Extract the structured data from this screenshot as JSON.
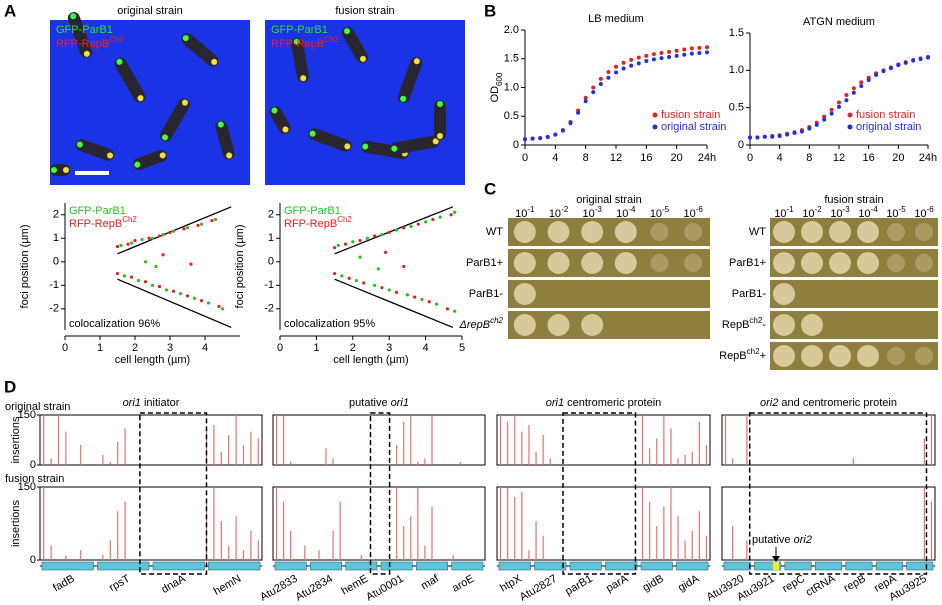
{
  "panel_labels": [
    "A",
    "B",
    "C",
    "D"
  ],
  "A": {
    "images": [
      {
        "title": "original strain"
      },
      {
        "title": "fusion strain"
      }
    ],
    "charts": [
      {
        "type": "scatter",
        "xlabel": "cell length (µm)",
        "ylabel": "foci position (µm)",
        "note": "colocalization 96%",
        "xlim": [
          0,
          5
        ],
        "xticks": [
          0,
          1,
          2,
          3,
          4
        ],
        "ylim": [
          -2.9,
          2.5
        ],
        "yticks": [
          -2,
          -1,
          0,
          1,
          2
        ],
        "series": [
          {
            "name": "GFP-ParB1",
            "color": "#22c322",
            "x": [
              1.6,
              1.9,
              2.2,
              2.5,
              2.8,
              3.1,
              3.5,
              3.9,
              4.3,
              1.7,
              2.1,
              2.5,
              2.9,
              3.3,
              3.7,
              4.1,
              4.5,
              2.3,
              2.6
            ],
            "y": [
              0.7,
              0.8,
              0.95,
              1.0,
              1.15,
              1.3,
              1.45,
              1.6,
              1.8,
              -0.6,
              -0.8,
              -1.0,
              -1.2,
              -1.35,
              -1.55,
              -1.75,
              -2.0,
              0.0,
              -0.2
            ]
          },
          {
            "name": [
              {
                "t": "RFP-RepB"
              },
              {
                "t": "Ch2",
                "sup": true
              }
            ],
            "color": "#e82020",
            "x": [
              1.5,
              1.8,
              2.0,
              2.4,
              2.7,
              3.0,
              3.4,
              3.8,
              4.2,
              1.5,
              1.9,
              2.3,
              2.7,
              3.1,
              3.5,
              3.9,
              4.4,
              2.8,
              3.6
            ],
            "y": [
              0.65,
              0.75,
              0.9,
              1.0,
              1.1,
              1.25,
              1.4,
              1.55,
              1.75,
              -0.5,
              -0.65,
              -0.85,
              -1.05,
              -1.25,
              -1.45,
              -1.65,
              -1.9,
              0.3,
              -0.1
            ]
          }
        ]
      },
      {
        "type": "scatter",
        "xlabel": "cell length (µm)",
        "ylabel": "foci position (µm)",
        "note": "colocalization 95%",
        "xlim": [
          0,
          5
        ],
        "xticks": [
          0,
          1,
          2,
          3,
          4,
          5
        ],
        "ylim": [
          -2.9,
          2.5
        ],
        "yticks": [
          -2,
          -1,
          0,
          1,
          2
        ],
        "series": [
          {
            "name": "GFP-ParB1",
            "color": "#22c322",
            "x": [
              1.6,
              2.0,
              2.4,
              2.8,
              3.2,
              3.6,
              4.0,
              4.4,
              4.8,
              1.7,
              2.1,
              2.6,
              3.0,
              3.5,
              3.9,
              4.3,
              4.8,
              2.2,
              2.7
            ],
            "y": [
              0.7,
              0.85,
              1.0,
              1.15,
              1.35,
              1.5,
              1.7,
              1.9,
              2.1,
              -0.6,
              -0.8,
              -1.0,
              -1.2,
              -1.4,
              -1.6,
              -1.8,
              -2.1,
              0.2,
              -0.3
            ]
          },
          {
            "name": [
              {
                "t": "RFP-RepB"
              },
              {
                "t": "Ch2",
                "sup": true
              }
            ],
            "color": "#e82020",
            "x": [
              1.5,
              1.8,
              2.2,
              2.6,
              3.0,
              3.4,
              3.8,
              4.2,
              4.7,
              1.5,
              1.9,
              2.3,
              2.8,
              3.2,
              3.7,
              4.1,
              4.6,
              2.9,
              3.4
            ],
            "y": [
              0.6,
              0.75,
              0.9,
              1.1,
              1.25,
              1.45,
              1.6,
              1.8,
              2.0,
              -0.5,
              -0.7,
              -0.9,
              -1.1,
              -1.3,
              -1.5,
              -1.7,
              -2.0,
              0.4,
              -0.2
            ]
          }
        ]
      }
    ]
  },
  "B": {
    "charts": [
      {
        "type": "line",
        "title": "LB medium",
        "ylabel": [
          {
            "t": "OD"
          },
          {
            "t": "600",
            "sub": true
          }
        ],
        "xlim": [
          0,
          24
        ],
        "xticks": [
          0,
          4,
          8,
          12,
          16,
          20,
          {
            "value": 24,
            "label": "24h"
          }
        ],
        "ylim": [
          0,
          2
        ],
        "yticks": [
          0,
          0.5,
          {
            "value": 1,
            "label": "1.0"
          },
          1.5,
          {
            "value": 2,
            "label": "2.0"
          }
        ],
        "x": [
          0,
          1,
          2,
          3,
          4,
          5,
          6,
          7,
          8,
          9,
          10,
          11,
          12,
          13,
          14,
          15,
          16,
          17,
          18,
          19,
          20,
          21,
          22,
          23,
          24
        ],
        "series": [
          {
            "name": "fusion strain",
            "color": "#e82020",
            "values": [
              0.1,
              0.11,
              0.12,
              0.14,
              0.18,
              0.26,
              0.4,
              0.6,
              0.82,
              1.0,
              1.15,
              1.27,
              1.36,
              1.43,
              1.48,
              1.52,
              1.55,
              1.58,
              1.6,
              1.62,
              1.64,
              1.66,
              1.68,
              1.69,
              1.7
            ]
          },
          {
            "name": "original strain",
            "color": "#2030e0",
            "values": [
              0.1,
              0.11,
              0.12,
              0.14,
              0.18,
              0.25,
              0.38,
              0.56,
              0.76,
              0.92,
              1.06,
              1.17,
              1.26,
              1.33,
              1.38,
              1.42,
              1.46,
              1.49,
              1.51,
              1.53,
              1.55,
              1.57,
              1.59,
              1.6,
              1.61
            ]
          }
        ]
      },
      {
        "type": "line",
        "title": "ATGN medium",
        "xlim": [
          0,
          24
        ],
        "xticks": [
          0,
          4,
          8,
          12,
          16,
          20,
          {
            "value": 24,
            "label": "24h"
          }
        ],
        "ylim": [
          0,
          1.5
        ],
        "yticks": [
          0,
          0.5,
          {
            "value": 1,
            "label": "1.0"
          },
          1.5
        ],
        "x": [
          0,
          1,
          2,
          3,
          4,
          5,
          6,
          7,
          8,
          9,
          10,
          11,
          12,
          13,
          14,
          15,
          16,
          17,
          18,
          19,
          20,
          21,
          22,
          23,
          24
        ],
        "series": [
          {
            "name": "fusion strain",
            "color": "#e82020",
            "values": [
              0.1,
              0.1,
              0.11,
              0.12,
              0.13,
              0.15,
              0.17,
              0.2,
              0.24,
              0.3,
              0.38,
              0.47,
              0.57,
              0.67,
              0.76,
              0.84,
              0.9,
              0.96,
              1.0,
              1.04,
              1.08,
              1.11,
              1.14,
              1.16,
              1.18
            ]
          },
          {
            "name": "original strain",
            "color": "#2030e0",
            "values": [
              0.1,
              0.1,
              0.11,
              0.11,
              0.12,
              0.14,
              0.16,
              0.18,
              0.22,
              0.27,
              0.34,
              0.42,
              0.51,
              0.6,
              0.7,
              0.79,
              0.87,
              0.94,
              0.99,
              1.03,
              1.07,
              1.1,
              1.13,
              1.15,
              1.17
            ]
          }
        ]
      }
    ]
  },
  "C": {
    "plates": [
      {
        "title": "original strain",
        "rows": [
          "WT",
          "ParB1+",
          "ParB1-",
          [
            {
              "t": "Δ",
              "i": true
            },
            {
              "t": "repB",
              "i": true
            },
            {
              "t": "ch2",
              "sup": true,
              "i": true
            }
          ]
        ]
      },
      {
        "title": "fusion strain",
        "rows": [
          "WT",
          "ParB1+",
          "ParB1-",
          [
            {
              "t": "RepB"
            },
            {
              "t": "ch2",
              "sup": true
            },
            {
              "t": "-"
            }
          ],
          [
            {
              "t": "RepB"
            },
            {
              "t": "ch2",
              "sup": true
            },
            {
              "t": "+"
            }
          ]
        ]
      }
    ],
    "dilutions": [
      [
        {
          "t": "10"
        },
        {
          "t": "-1",
          "sup": true
        }
      ],
      [
        {
          "t": "10"
        },
        {
          "t": "-2",
          "sup": true
        }
      ],
      [
        {
          "t": "10"
        },
        {
          "t": "-3",
          "sup": true
        }
      ],
      [
        {
          "t": "10"
        },
        {
          "t": "-4",
          "sup": true
        }
      ],
      [
        {
          "t": "10"
        },
        {
          "t": "-5",
          "sup": true
        }
      ],
      [
        {
          "t": "10"
        },
        {
          "t": "-6",
          "sup": true
        }
      ]
    ]
  },
  "D": {
    "tracks": [
      "original strain",
      "fusion strain"
    ],
    "ylabel": "insertions",
    "ylim": [
      0,
      150
    ],
    "yticks": [
      0,
      150
    ],
    "annotation": [
      {
        "t": "putative "
      },
      {
        "t": "ori2",
        "i": true
      }
    ],
    "regions": [
      {
        "title": [
          {
            "t": "ori1",
            "i": true
          },
          {
            "t": " initiator"
          }
        ],
        "genes": [
          "fadB",
          "rpsT",
          "dnaA",
          "hemN"
        ],
        "original": [
          150,
          20,
          150,
          100,
          0,
          60,
          0,
          0,
          30,
          10,
          70,
          110,
          0,
          0,
          0,
          0,
          0,
          0,
          0,
          0,
          0,
          0,
          100,
          120,
          40,
          90,
          150,
          60,
          100,
          80
        ],
        "fusion": [
          150,
          30,
          0,
          10,
          0,
          20,
          0,
          0,
          10,
          40,
          100,
          120,
          0,
          0,
          0,
          0,
          0,
          0,
          0,
          0,
          0,
          0,
          120,
          150,
          80,
          30,
          90,
          20,
          60,
          40
        ]
      },
      {
        "title": [
          {
            "t": "putative "
          },
          {
            "t": "ori1",
            "i": true
          }
        ],
        "genes": [
          "Atu2833",
          "Atu2834",
          "hemE",
          "Atu0001",
          "maf",
          "aroE"
        ],
        "original": [
          150,
          150,
          10,
          0,
          0,
          0,
          0,
          50,
          20,
          0,
          0,
          0,
          0,
          0,
          0,
          0,
          0,
          60,
          130,
          150,
          10,
          20,
          150,
          0,
          0,
          0,
          10,
          0,
          0,
          0
        ],
        "fusion": [
          150,
          120,
          60,
          0,
          30,
          0,
          20,
          0,
          60,
          120,
          0,
          0,
          10,
          0,
          0,
          0,
          0,
          150,
          70,
          90,
          150,
          30,
          110,
          0,
          0,
          10,
          0,
          0,
          0,
          0
        ]
      },
      {
        "title": [
          {
            "t": "ori1",
            "i": true
          },
          {
            "t": " centromeric protein"
          }
        ],
        "genes": [
          "htpX",
          "Atu2827",
          "parB1",
          "parA",
          "gidB",
          "gidA"
        ],
        "original": [
          150,
          130,
          150,
          100,
          120,
          40,
          90,
          20,
          0,
          0,
          0,
          0,
          0,
          0,
          0,
          0,
          0,
          0,
          0,
          0,
          150,
          50,
          80,
          150,
          110,
          20,
          30,
          40,
          130,
          60
        ],
        "fusion": [
          150,
          150,
          130,
          140,
          20,
          80,
          50,
          0,
          0,
          0,
          0,
          0,
          0,
          0,
          0,
          0,
          0,
          0,
          0,
          0,
          150,
          120,
          70,
          110,
          150,
          90,
          40,
          60,
          100,
          50
        ]
      },
      {
        "title": [
          {
            "t": "ori2",
            "i": true
          },
          {
            "t": " and centromeric protein"
          }
        ],
        "genes": [
          "Atu3920",
          "Atu3921",
          "repC",
          "ctRNA",
          "repB",
          "repA",
          "Atu3925"
        ],
        "original": [
          150,
          20,
          0,
          150,
          0,
          0,
          0,
          0,
          0,
          0,
          0,
          0,
          0,
          0,
          0,
          0,
          0,
          0,
          20,
          0,
          0,
          0,
          0,
          0,
          0,
          0,
          0,
          0,
          80,
          150
        ],
        "fusion": [
          0,
          70,
          0,
          40,
          0,
          0,
          0,
          0,
          0,
          0,
          0,
          0,
          0,
          0,
          0,
          0,
          0,
          0,
          0,
          0,
          0,
          0,
          0,
          0,
          0,
          0,
          0,
          0,
          150,
          120
        ]
      }
    ]
  }
}
